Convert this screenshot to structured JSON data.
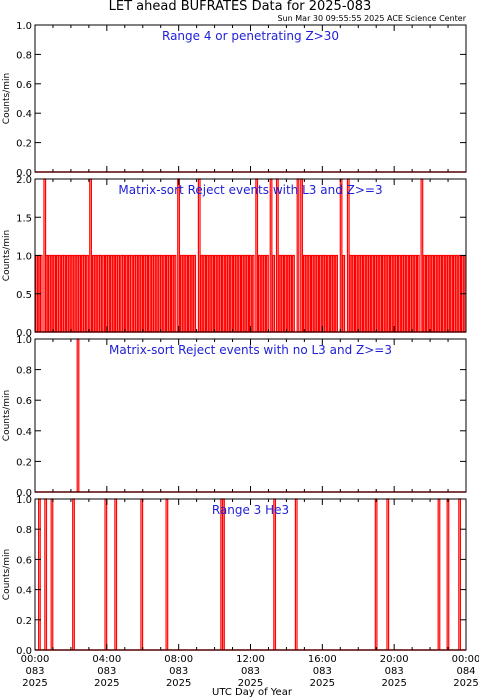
{
  "title": "LET ahead BUFRATES Data for 2025-083",
  "timestamp": "Sun Mar 30 09:55:55 2025 ACE Science Center",
  "xlabel": "UTC Day of Year",
  "colors": {
    "frame": "#000000",
    "trace": "#ff0000",
    "panel_title": "#1f1fd8",
    "background": "#ffffff"
  },
  "x_ticks": [
    {
      "hours": 0,
      "time": "00:00",
      "doy": "083",
      "year": "2025"
    },
    {
      "hours": 4,
      "time": "04:00",
      "doy": "083",
      "year": "2025"
    },
    {
      "hours": 8,
      "time": "08:00",
      "doy": "083",
      "year": "2025"
    },
    {
      "hours": 12,
      "time": "12:00",
      "doy": "083",
      "year": "2025"
    },
    {
      "hours": 16,
      "time": "16:00",
      "doy": "083",
      "year": "2025"
    },
    {
      "hours": 20,
      "time": "20:00",
      "doy": "083",
      "year": "2025"
    },
    {
      "hours": 24,
      "time": "00:00",
      "doy": "084",
      "year": "2025"
    }
  ],
  "chart_data": [
    {
      "type": "line",
      "title": "Range 4 or  penetrating Z>30",
      "ylabel": "Counts/min",
      "ylim": [
        0,
        1.0
      ],
      "yticks": [
        "0.0",
        "0.2",
        "0.4",
        "0.6",
        "0.8",
        "1.0"
      ],
      "ytick_values": [
        0,
        0.2,
        0.4,
        0.6,
        0.8,
        1.0
      ],
      "xlim_hours": [
        0,
        24
      ],
      "spikes": []
    },
    {
      "type": "line",
      "title": "Matrix-sort Reject events with L3 and Z>=3",
      "ylabel": "Counts/min",
      "ylim": [
        0,
        2.0
      ],
      "yticks": [
        "0.0",
        "0.5",
        "1.0",
        "1.5",
        "2.0"
      ],
      "ytick_values": [
        0,
        0.5,
        1.0,
        1.5,
        2.0
      ],
      "xlim_hours": [
        0,
        24
      ],
      "spikes": [
        {
          "h": 0.5,
          "v": 2
        },
        {
          "h": 3.05,
          "v": 2
        },
        {
          "h": 7.95,
          "v": 2
        },
        {
          "h": 9.1,
          "v": 2
        },
        {
          "h": 12.3,
          "v": 2
        },
        {
          "h": 13.1,
          "v": 2
        },
        {
          "h": 13.45,
          "v": 2
        },
        {
          "h": 14.6,
          "v": 2
        },
        {
          "h": 14.8,
          "v": 2
        },
        {
          "h": 17.0,
          "v": 2
        },
        {
          "h": 17.4,
          "v": 2
        },
        {
          "h": 21.5,
          "v": 2
        },
        {
          "h": 0.05,
          "v": 1
        },
        {
          "h": 0.18,
          "v": 1
        },
        {
          "h": 0.3,
          "v": 1
        },
        {
          "h": 0.62,
          "v": 1
        },
        {
          "h": 0.75,
          "v": 1
        },
        {
          "h": 0.9,
          "v": 1
        },
        {
          "h": 1.05,
          "v": 1
        },
        {
          "h": 1.2,
          "v": 1
        },
        {
          "h": 1.32,
          "v": 1
        },
        {
          "h": 1.48,
          "v": 1
        },
        {
          "h": 1.6,
          "v": 1
        },
        {
          "h": 1.75,
          "v": 1
        },
        {
          "h": 1.9,
          "v": 1
        },
        {
          "h": 2.02,
          "v": 1
        },
        {
          "h": 2.18,
          "v": 1
        },
        {
          "h": 2.3,
          "v": 1
        },
        {
          "h": 2.45,
          "v": 1
        },
        {
          "h": 2.6,
          "v": 1
        },
        {
          "h": 2.72,
          "v": 1
        },
        {
          "h": 2.88,
          "v": 1
        },
        {
          "h": 3.2,
          "v": 1
        },
        {
          "h": 3.35,
          "v": 1
        },
        {
          "h": 3.5,
          "v": 1
        },
        {
          "h": 3.62,
          "v": 1
        },
        {
          "h": 3.78,
          "v": 1
        },
        {
          "h": 3.92,
          "v": 1
        },
        {
          "h": 4.05,
          "v": 1
        },
        {
          "h": 4.2,
          "v": 1
        },
        {
          "h": 4.35,
          "v": 1
        },
        {
          "h": 4.48,
          "v": 1
        },
        {
          "h": 4.62,
          "v": 1
        },
        {
          "h": 4.78,
          "v": 1
        },
        {
          "h": 4.9,
          "v": 1
        },
        {
          "h": 5.05,
          "v": 1
        },
        {
          "h": 5.2,
          "v": 1
        },
        {
          "h": 5.32,
          "v": 1
        },
        {
          "h": 5.48,
          "v": 1
        },
        {
          "h": 5.62,
          "v": 1
        },
        {
          "h": 5.75,
          "v": 1
        },
        {
          "h": 5.9,
          "v": 1
        },
        {
          "h": 6.05,
          "v": 1
        },
        {
          "h": 6.18,
          "v": 1
        },
        {
          "h": 6.32,
          "v": 1
        },
        {
          "h": 6.48,
          "v": 1
        },
        {
          "h": 6.6,
          "v": 1
        },
        {
          "h": 6.75,
          "v": 1
        },
        {
          "h": 6.9,
          "v": 1
        },
        {
          "h": 7.02,
          "v": 1
        },
        {
          "h": 7.18,
          "v": 1
        },
        {
          "h": 7.32,
          "v": 1
        },
        {
          "h": 7.45,
          "v": 1
        },
        {
          "h": 7.6,
          "v": 1
        },
        {
          "h": 7.75,
          "v": 1
        },
        {
          "h": 8.1,
          "v": 1
        },
        {
          "h": 8.25,
          "v": 1
        },
        {
          "h": 8.4,
          "v": 1
        },
        {
          "h": 8.55,
          "v": 1
        },
        {
          "h": 8.7,
          "v": 1
        },
        {
          "h": 8.85,
          "v": 1
        },
        {
          "h": 9.25,
          "v": 1
        },
        {
          "h": 9.4,
          "v": 1
        },
        {
          "h": 9.55,
          "v": 1
        },
        {
          "h": 9.7,
          "v": 1
        },
        {
          "h": 9.85,
          "v": 1
        },
        {
          "h": 10.0,
          "v": 1
        },
        {
          "h": 10.15,
          "v": 1
        },
        {
          "h": 10.3,
          "v": 1
        },
        {
          "h": 10.45,
          "v": 1
        },
        {
          "h": 10.6,
          "v": 1
        },
        {
          "h": 10.75,
          "v": 1
        },
        {
          "h": 10.9,
          "v": 1
        },
        {
          "h": 11.05,
          "v": 1
        },
        {
          "h": 11.2,
          "v": 1
        },
        {
          "h": 11.35,
          "v": 1
        },
        {
          "h": 11.5,
          "v": 1
        },
        {
          "h": 11.65,
          "v": 1
        },
        {
          "h": 11.8,
          "v": 1
        },
        {
          "h": 11.95,
          "v": 1
        },
        {
          "h": 12.1,
          "v": 1
        },
        {
          "h": 12.45,
          "v": 1
        },
        {
          "h": 12.6,
          "v": 1
        },
        {
          "h": 12.75,
          "v": 1
        },
        {
          "h": 12.9,
          "v": 1
        },
        {
          "h": 13.25,
          "v": 1
        },
        {
          "h": 13.6,
          "v": 1
        },
        {
          "h": 13.75,
          "v": 1
        },
        {
          "h": 13.9,
          "v": 1
        },
        {
          "h": 14.05,
          "v": 1
        },
        {
          "h": 14.2,
          "v": 1
        },
        {
          "h": 14.35,
          "v": 1
        },
        {
          "h": 14.95,
          "v": 1
        },
        {
          "h": 15.1,
          "v": 1
        },
        {
          "h": 15.25,
          "v": 1
        },
        {
          "h": 15.4,
          "v": 1
        },
        {
          "h": 15.55,
          "v": 1
        },
        {
          "h": 15.7,
          "v": 1
        },
        {
          "h": 15.85,
          "v": 1
        },
        {
          "h": 16.0,
          "v": 1
        },
        {
          "h": 16.15,
          "v": 1
        },
        {
          "h": 16.3,
          "v": 1
        },
        {
          "h": 16.45,
          "v": 1
        },
        {
          "h": 16.6,
          "v": 1
        },
        {
          "h": 16.75,
          "v": 1
        },
        {
          "h": 17.15,
          "v": 1
        },
        {
          "h": 17.55,
          "v": 1
        },
        {
          "h": 17.7,
          "v": 1
        },
        {
          "h": 17.85,
          "v": 1
        },
        {
          "h": 18.0,
          "v": 1
        },
        {
          "h": 18.15,
          "v": 1
        },
        {
          "h": 18.3,
          "v": 1
        },
        {
          "h": 18.45,
          "v": 1
        },
        {
          "h": 18.6,
          "v": 1
        },
        {
          "h": 18.75,
          "v": 1
        },
        {
          "h": 18.9,
          "v": 1
        },
        {
          "h": 19.05,
          "v": 1
        },
        {
          "h": 19.2,
          "v": 1
        },
        {
          "h": 19.35,
          "v": 1
        },
        {
          "h": 19.5,
          "v": 1
        },
        {
          "h": 19.65,
          "v": 1
        },
        {
          "h": 19.8,
          "v": 1
        },
        {
          "h": 19.95,
          "v": 1
        },
        {
          "h": 20.1,
          "v": 1
        },
        {
          "h": 20.25,
          "v": 1
        },
        {
          "h": 20.4,
          "v": 1
        },
        {
          "h": 20.55,
          "v": 1
        },
        {
          "h": 20.7,
          "v": 1
        },
        {
          "h": 20.85,
          "v": 1
        },
        {
          "h": 21.0,
          "v": 1
        },
        {
          "h": 21.15,
          "v": 1
        },
        {
          "h": 21.3,
          "v": 1
        },
        {
          "h": 21.65,
          "v": 1
        },
        {
          "h": 21.8,
          "v": 1
        },
        {
          "h": 21.95,
          "v": 1
        },
        {
          "h": 22.1,
          "v": 1
        },
        {
          "h": 22.25,
          "v": 1
        },
        {
          "h": 22.4,
          "v": 1
        },
        {
          "h": 22.55,
          "v": 1
        },
        {
          "h": 22.7,
          "v": 1
        },
        {
          "h": 22.85,
          "v": 1
        },
        {
          "h": 23.0,
          "v": 1
        },
        {
          "h": 23.15,
          "v": 1
        },
        {
          "h": 23.3,
          "v": 1
        },
        {
          "h": 23.45,
          "v": 1
        },
        {
          "h": 23.6,
          "v": 1
        },
        {
          "h": 23.75,
          "v": 1
        },
        {
          "h": 23.9,
          "v": 1
        }
      ]
    },
    {
      "type": "line",
      "title": "Matrix-sort Reject events with no L3 and Z>=3",
      "ylabel": "Counts/min",
      "ylim": [
        0,
        1.0
      ],
      "yticks": [
        "0.0",
        "0.2",
        "0.4",
        "0.6",
        "0.8",
        "1.0"
      ],
      "ytick_values": [
        0,
        0.2,
        0.4,
        0.6,
        0.8,
        1.0
      ],
      "xlim_hours": [
        0,
        24
      ],
      "spikes": [
        {
          "h": 2.35,
          "v": 1
        }
      ]
    },
    {
      "type": "line",
      "title": "Range 3 He3",
      "ylabel": "Counts/min",
      "ylim": [
        0,
        1.0
      ],
      "yticks": [
        "0.0",
        "0.2",
        "0.4",
        "0.6",
        "0.8",
        "1.0"
      ],
      "ytick_values": [
        0,
        0.2,
        0.4,
        0.6,
        0.8,
        1.0
      ],
      "xlim_hours": [
        0,
        24
      ],
      "spikes": [
        {
          "h": 0.2,
          "v": 1
        },
        {
          "h": 0.55,
          "v": 1
        },
        {
          "h": 0.9,
          "v": 1
        },
        {
          "h": 2.1,
          "v": 1
        },
        {
          "h": 3.9,
          "v": 1
        },
        {
          "h": 4.45,
          "v": 1
        },
        {
          "h": 5.9,
          "v": 1
        },
        {
          "h": 7.3,
          "v": 1
        },
        {
          "h": 10.35,
          "v": 1
        },
        {
          "h": 10.45,
          "v": 1
        },
        {
          "h": 13.3,
          "v": 1
        },
        {
          "h": 14.5,
          "v": 1
        },
        {
          "h": 18.95,
          "v": 1
        },
        {
          "h": 19.6,
          "v": 1
        },
        {
          "h": 22.45,
          "v": 1
        },
        {
          "h": 22.95,
          "v": 1
        },
        {
          "h": 23.6,
          "v": 1
        }
      ]
    }
  ]
}
